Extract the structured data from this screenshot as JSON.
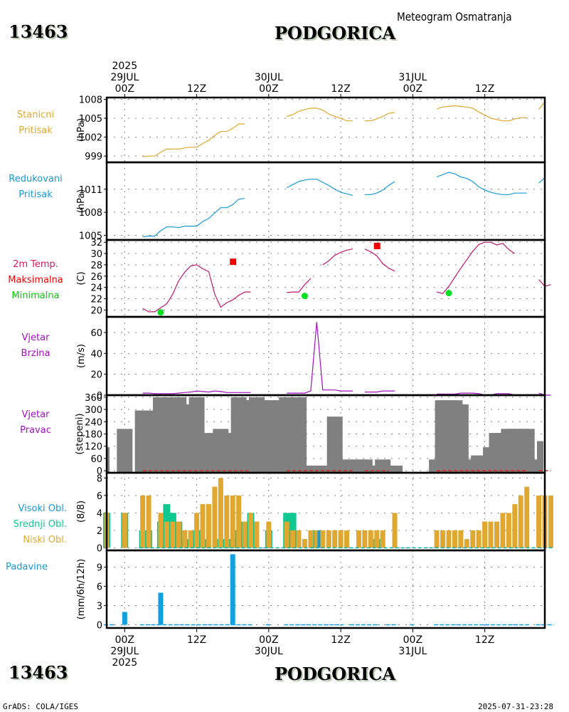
{
  "header": {
    "station_id": "13463",
    "station_name": "PODGORICA",
    "subtitle": "Meteogram Osmatranja"
  },
  "footer": {
    "station_id": "13463",
    "station_name": "PODGORICA",
    "credit": "GrADS: COLA/IGES",
    "timestamp": "2025-07-31-23:28"
  },
  "time_axis": {
    "top_labels": [
      {
        "lines": [
          "2025",
          "29JUL",
          "00Z"
        ],
        "hour": 0
      },
      {
        "lines": [
          "12Z"
        ],
        "hour": 12
      },
      {
        "lines": [
          "30JUL",
          "00Z"
        ],
        "hour": 24
      },
      {
        "lines": [
          "12Z"
        ],
        "hour": 36
      },
      {
        "lines": [
          "31JUL",
          "00Z"
        ],
        "hour": 48
      },
      {
        "lines": [
          "12Z"
        ],
        "hour": 60
      }
    ],
    "bottom_labels": [
      {
        "lines": [
          "00Z",
          "29JUL",
          "2025"
        ],
        "hour": 0
      },
      {
        "lines": [
          "12Z"
        ],
        "hour": 12
      },
      {
        "lines": [
          "00Z",
          "30JUL"
        ],
        "hour": 24
      },
      {
        "lines": [
          "12Z"
        ],
        "hour": 36
      },
      {
        "lines": [
          "00Z",
          "31JUL"
        ],
        "hour": 48
      },
      {
        "lines": [
          "12Z"
        ],
        "hour": 60
      }
    ],
    "range_hours": [
      -3,
      70
    ]
  },
  "chart_data": [
    {
      "id": "station_pressure",
      "type": "line",
      "title_lines": [
        "Stanicni",
        "Pritisak"
      ],
      "ylabel": "(hPa)",
      "ylim": [
        998,
        1008.3
      ],
      "yticks": [
        999,
        1002,
        1005,
        1008
      ],
      "color": "#e0a830",
      "x_hours": [
        3,
        4,
        5,
        6,
        7,
        8,
        9,
        10,
        11,
        12,
        13,
        14,
        15,
        16,
        17,
        18,
        19,
        20,
        21,
        22,
        23,
        null,
        27,
        28,
        29,
        30,
        31,
        32,
        33,
        34,
        35,
        36,
        37,
        38,
        null,
        40,
        41,
        42,
        43,
        44,
        45,
        null,
        52,
        53,
        54,
        55,
        56,
        57,
        58,
        59,
        60,
        61,
        62,
        63,
        64,
        65,
        66,
        67,
        null,
        69,
        70
      ],
      "values": [
        998.9,
        999.0,
        999.0,
        999.6,
        1000.1,
        1000.1,
        1000.1,
        1000.3,
        1000.4,
        1000.4,
        1001.0,
        1001.5,
        1002.3,
        1002.9,
        1002.9,
        1003.4,
        1004.1,
        1004.1,
        null,
        null,
        null,
        null,
        1005.3,
        1005.6,
        1006.1,
        1006.4,
        1006.6,
        1006.6,
        1006.3,
        1005.7,
        1005.3,
        1005.0,
        1004.6,
        1004.6,
        null,
        1004.6,
        1004.6,
        1004.9,
        1005.3,
        1005.8,
        1005.9,
        null,
        1006.5,
        1006.8,
        1006.9,
        1007.0,
        1006.9,
        1006.8,
        1006.6,
        1006.0,
        1005.5,
        1005.0,
        1004.8,
        1004.6,
        1004.6,
        1004.9,
        1005.1,
        1005.1,
        null,
        1006.4,
        1007.6
      ]
    },
    {
      "id": "reduced_pressure",
      "type": "line",
      "title_lines": [
        "Redukovani",
        "Pritisak"
      ],
      "ylabel": "(hPa)",
      "ylim": [
        1004.4,
        1014.5
      ],
      "yticks": [
        1005,
        1008,
        1011
      ],
      "color": "#1899d8",
      "x_hours": [
        3,
        4,
        5,
        6,
        7,
        8,
        9,
        10,
        11,
        12,
        13,
        14,
        15,
        16,
        17,
        18,
        19,
        20,
        null,
        27,
        28,
        29,
        30,
        31,
        32,
        33,
        34,
        35,
        36,
        37,
        38,
        null,
        40,
        41,
        42,
        43,
        44,
        45,
        null,
        52,
        53,
        54,
        55,
        56,
        57,
        58,
        59,
        60,
        61,
        62,
        63,
        64,
        65,
        66,
        67,
        null,
        69,
        70
      ],
      "values": [
        1004.8,
        1004.9,
        1004.9,
        1005.6,
        1006.1,
        1006.1,
        1006.0,
        1006.2,
        1006.2,
        1006.2,
        1006.8,
        1007.2,
        1007.9,
        1008.6,
        1008.6,
        1009.0,
        1009.7,
        1009.8,
        null,
        1011.2,
        1011.6,
        1012.0,
        1012.2,
        1012.3,
        1012.3,
        1011.9,
        1011.5,
        1011.0,
        1010.6,
        1010.4,
        1010.2,
        null,
        1010.3,
        1010.3,
        1010.5,
        1010.9,
        1011.5,
        1012.0,
        null,
        1012.6,
        1012.9,
        1013.2,
        1013.0,
        1012.6,
        1012.4,
        1012.0,
        1011.3,
        1010.9,
        1010.6,
        1010.4,
        1010.3,
        1010.3,
        1010.5,
        1010.5,
        1010.5,
        null,
        1011.8,
        1012.5
      ]
    },
    {
      "id": "temperature",
      "type": "line",
      "title_lines": [
        "2m Temp.",
        "Maksimalna",
        "Minimalna"
      ],
      "title_colors": [
        "#d81860",
        "#f00000",
        "#00d000"
      ],
      "ylabel": "(C)",
      "ylim": [
        18.8,
        32.4
      ],
      "yticks": [
        20,
        22,
        24,
        26,
        28,
        30,
        32
      ],
      "color": "#c01870",
      "x_hours": [
        3,
        4,
        5,
        6,
        7,
        8,
        9,
        10,
        11,
        12,
        13,
        14,
        15,
        16,
        17,
        18,
        19,
        20,
        21,
        null,
        27,
        28,
        29,
        30,
        31,
        null,
        33,
        34,
        35,
        36,
        37,
        38,
        null,
        40,
        41,
        42,
        43,
        44,
        45,
        null,
        52,
        53,
        54,
        55,
        56,
        57,
        58,
        59,
        60,
        61,
        62,
        63,
        64,
        65,
        null,
        69,
        70,
        71
      ],
      "values": [
        20.3,
        19.7,
        19.7,
        20.4,
        21.1,
        22.8,
        25.2,
        26.7,
        27.8,
        28.0,
        27.3,
        26.8,
        22.8,
        20.5,
        21.3,
        21.8,
        22.6,
        23.2,
        23.2,
        null,
        23.1,
        23.2,
        23.2,
        24.5,
        25.6,
        null,
        28.0,
        28.7,
        29.7,
        30.2,
        30.6,
        30.8,
        null,
        30.8,
        30.3,
        29.6,
        28.2,
        27.4,
        26.9,
        null,
        23.2,
        22.9,
        24.2,
        25.8,
        27.4,
        28.9,
        30.4,
        31.6,
        32.0,
        32.0,
        31.5,
        31.8,
        30.7,
        30.0,
        null,
        25.4,
        24.2,
        24.5
      ],
      "max_points": [
        {
          "hour": 18,
          "value": 28.6
        },
        {
          "hour": 42,
          "value": 31.4
        }
      ],
      "min_points": [
        {
          "hour": 6,
          "value": 19.6
        },
        {
          "hour": 30,
          "value": 22.5
        },
        {
          "hour": 54,
          "value": 23.0
        }
      ],
      "max_color": "#f00000",
      "min_color": "#00e020"
    },
    {
      "id": "wind_speed",
      "type": "line",
      "title_lines": [
        "Vjetar",
        "Brzina"
      ],
      "ylabel": "(m/s)",
      "ylim": [
        0,
        75
      ],
      "yticks": [
        0,
        20,
        40,
        60
      ],
      "color": "#a010c0",
      "x_hours": [
        3,
        4,
        5,
        6,
        7,
        8,
        9,
        10,
        11,
        12,
        13,
        14,
        15,
        16,
        17,
        18,
        19,
        20,
        21,
        null,
        27,
        28,
        29,
        30,
        31,
        32,
        33,
        34,
        35,
        36,
        37,
        38,
        null,
        40,
        41,
        42,
        43,
        44,
        45,
        null,
        52,
        53,
        54,
        55,
        56,
        57,
        58,
        59,
        60,
        61,
        62,
        63,
        64,
        65,
        null,
        69,
        70,
        71
      ],
      "values": [
        2,
        2,
        1.5,
        1.5,
        1.5,
        1.5,
        2,
        2.5,
        3,
        4,
        3.5,
        3,
        4,
        3.5,
        2.5,
        2.5,
        2.5,
        2.5,
        2.5,
        null,
        2,
        2,
        2,
        2,
        4,
        70,
        5,
        5,
        5,
        4,
        4,
        4,
        null,
        3,
        3,
        3,
        4,
        4,
        4,
        null,
        1,
        1,
        1,
        1,
        2,
        2,
        2,
        1.5,
        0,
        0,
        1.5,
        1.5,
        1.5,
        0,
        null,
        2,
        0,
        0
      ]
    },
    {
      "id": "wind_direction",
      "type": "bar",
      "title_lines": [
        "Vjetar",
        "Pravac"
      ],
      "ylabel": "(stepeni)",
      "ylim": [
        -10,
        370
      ],
      "yticks": [
        0,
        60,
        120,
        180,
        240,
        300,
        360
      ],
      "color": "#808080",
      "calm_line_color": "#e02020",
      "x_hours": [
        -3,
        0,
        3,
        4,
        6,
        8,
        9,
        11,
        12,
        13,
        15,
        16,
        17,
        18,
        19,
        20,
        21,
        22,
        23,
        24,
        26,
        27,
        29,
        30,
        32,
        33,
        34,
        35,
        36,
        37,
        39,
        40,
        41,
        42,
        43,
        45,
        52,
        53,
        54,
        55,
        56,
        57,
        58,
        59,
        60,
        61,
        62,
        63,
        64,
        65,
        66,
        67,
        69,
        70,
        71
      ],
      "values": [
        115,
        205,
        295,
        295,
        360,
        360,
        360,
        325,
        360,
        185,
        185,
        205,
        185,
        165,
        360,
        345,
        345,
        360,
        345,
        345,
        345,
        360,
        360,
        25,
        25,
        25,
        25,
        265,
        25,
        55,
        55,
        55,
        25,
        25,
        55,
        25,
        55,
        345,
        345,
        345,
        325,
        25,
        55,
        75,
        55,
        115,
        185,
        185,
        205,
        205,
        205,
        205,
        55,
        145,
        55
      ],
      "calm_ranges_hours": [
        [
          3,
          21
        ],
        [
          27,
          38
        ],
        [
          40,
          44
        ],
        [
          52,
          67
        ],
        [
          69,
          71
        ]
      ]
    },
    {
      "id": "clouds",
      "type": "bar",
      "title_lines": [
        "Visoki Obl.",
        "Srednji Obl.",
        "Niski Obl."
      ],
      "title_colors": [
        "#1899d8",
        "#10c890",
        "#e0a830"
      ],
      "ylabel": "(8/8)",
      "ylim": [
        -0.3,
        8.6
      ],
      "yticks": [
        0,
        2,
        4,
        6,
        8
      ],
      "series": [
        {
          "name": "Niski Obl.",
          "color": "#e0a830",
          "x_hours": [
            -3,
            0,
            3,
            4,
            6,
            7,
            8,
            9,
            10,
            11,
            12,
            13,
            14,
            15,
            16,
            17,
            18,
            19,
            20,
            21,
            22,
            24,
            27,
            28,
            29,
            30,
            31,
            32,
            33,
            34,
            35,
            36,
            37,
            39,
            40,
            41,
            42,
            43,
            45,
            52,
            53,
            54,
            55,
            56,
            57,
            58,
            59,
            60,
            61,
            62,
            63,
            64,
            65,
            66,
            67,
            69,
            70,
            71
          ],
          "values": [
            4,
            4,
            6,
            6,
            4,
            3,
            3,
            3,
            2,
            2,
            4,
            5,
            5,
            7,
            8,
            6,
            6,
            6,
            3,
            4,
            3,
            3,
            3,
            2,
            2,
            1,
            2,
            2,
            2,
            2,
            2,
            2,
            2,
            2,
            2,
            2,
            2,
            2,
            4,
            2,
            2,
            2,
            2,
            2,
            1,
            2,
            2,
            3,
            3,
            3,
            4,
            4,
            5,
            6,
            7,
            6,
            6,
            6
          ]
        },
        {
          "name": "Srednji Obl.",
          "color": "#10c890",
          "x_hours": [
            -3,
            0,
            3,
            4,
            6,
            7,
            8,
            9,
            10,
            11,
            12,
            13,
            14,
            15,
            16,
            17,
            18,
            19,
            20,
            21,
            22,
            24,
            27,
            28,
            32,
            42
          ],
          "values": [
            4,
            4,
            2,
            2,
            3,
            5,
            4,
            3,
            1,
            1,
            2,
            1,
            0,
            0,
            1,
            1,
            1,
            2,
            3,
            4,
            0,
            2,
            4,
            4,
            2,
            1
          ]
        },
        {
          "name": "Visoki Obl.",
          "color": "#1899d8",
          "x_hours": [
            32
          ],
          "values": [
            2
          ]
        }
      ]
    },
    {
      "id": "precipitation",
      "type": "bar",
      "title_lines": [
        "Padavine"
      ],
      "ylabel": "(mm/6h/12h)",
      "ylim": [
        -0.5,
        11.6
      ],
      "yticks": [
        0,
        3,
        6,
        9
      ],
      "color": "#10a0e0",
      "x_hours": [
        0,
        6,
        18
      ],
      "values": [
        2,
        5,
        11
      ],
      "trace_ranges_hours": [
        [
          -3,
          -2
        ],
        [
          3,
          21
        ],
        [
          24,
          24
        ],
        [
          27,
          36
        ],
        [
          38,
          42
        ],
        [
          44,
          45
        ],
        [
          48,
          48
        ],
        [
          52,
          67
        ],
        [
          69,
          71
        ]
      ]
    }
  ]
}
